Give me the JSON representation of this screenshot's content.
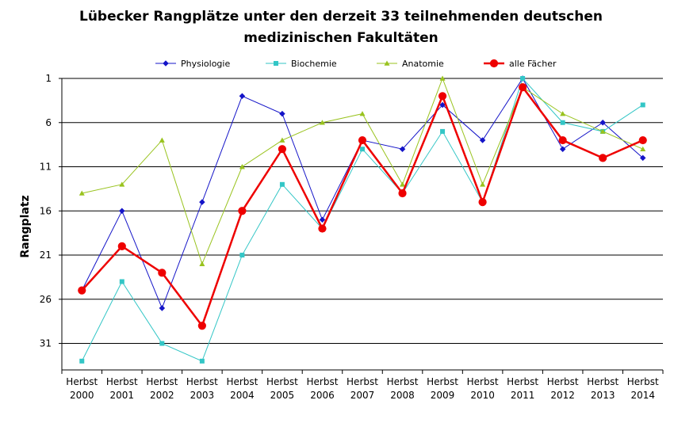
{
  "chart_data": {
    "type": "line",
    "title_lines": [
      "Lübecker Rangplätze unter den derzeit 33 teilnehmenden deutschen",
      "medizinischen Fakultäten"
    ],
    "ylabel": "Rangplatz",
    "xlabel": "",
    "y_inverted": true,
    "ylim": [
      1,
      34
    ],
    "yticks": [
      1,
      6,
      11,
      16,
      21,
      26,
      31
    ],
    "grid": "horizontal",
    "legend_position": "top",
    "categories": [
      [
        "Herbst",
        "2000"
      ],
      [
        "Herbst",
        "2001"
      ],
      [
        "Herbst",
        "2002"
      ],
      [
        "Herbst",
        "2003"
      ],
      [
        "Herbst",
        "2004"
      ],
      [
        "Herbst",
        "2005"
      ],
      [
        "Herbst",
        "2006"
      ],
      [
        "Herbst",
        "2007"
      ],
      [
        "Herbst",
        "2008"
      ],
      [
        "Herbst",
        "2009"
      ],
      [
        "Herbst",
        "2010"
      ],
      [
        "Herbst",
        "2011"
      ],
      [
        "Herbst",
        "2012"
      ],
      [
        "Herbst",
        "2013"
      ],
      [
        "Herbst",
        "2014"
      ]
    ],
    "series": [
      {
        "name": "Physiologie",
        "color": "#1414c8",
        "marker": "diamond",
        "width": 1,
        "values": [
          25,
          16,
          27,
          15,
          3,
          5,
          17,
          8,
          9,
          4,
          8,
          1,
          9,
          6,
          10
        ]
      },
      {
        "name": "Biochemie",
        "color": "#33c6c6",
        "marker": "square",
        "width": 1,
        "values": [
          33,
          24,
          31,
          33,
          21,
          13,
          18,
          9,
          14,
          7,
          15,
          1,
          6,
          7,
          4
        ]
      },
      {
        "name": "Anatomie",
        "color": "#99c31e",
        "marker": "triangle",
        "width": 1,
        "values": [
          14,
          13,
          8,
          22,
          11,
          8,
          6,
          5,
          13,
          1,
          13,
          2,
          5,
          7,
          9
        ]
      },
      {
        "name": "alle Fächer",
        "color": "#ee0000",
        "marker": "circle",
        "width": 2.5,
        "values": [
          25,
          20,
          23,
          29,
          16,
          9,
          18,
          8,
          14,
          3,
          15,
          2,
          8,
          10,
          8
        ]
      }
    ]
  }
}
